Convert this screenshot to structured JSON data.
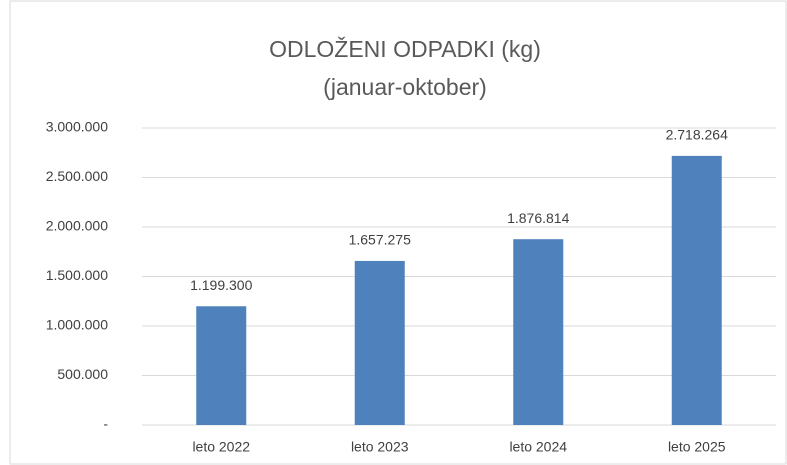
{
  "chart_data": {
    "type": "bar",
    "title": "ODLOŽENI ODPADKI (kg)",
    "subtitle": "(januar-oktober)",
    "categories": [
      "leto 2022",
      "leto 2023",
      "leto 2024",
      "leto 2025"
    ],
    "values": [
      1199300,
      1657275,
      1876814,
      2718264
    ],
    "value_labels": [
      "1.199.300",
      "1.657.275",
      "1.876.814",
      "2.718.264"
    ],
    "color": "#4f81bd",
    "ylim": [
      0,
      3000000
    ],
    "yticks": [
      {
        "value": 0,
        "label": "-"
      },
      {
        "value": 500000,
        "label": "500.000"
      },
      {
        "value": 1000000,
        "label": "1.000.000"
      },
      {
        "value": 1500000,
        "label": "1.500.000"
      },
      {
        "value": 2000000,
        "label": "2.000.000"
      },
      {
        "value": 2500000,
        "label": "2.500.000"
      },
      {
        "value": 3000000,
        "label": "3.000.000"
      }
    ],
    "grid": true
  }
}
